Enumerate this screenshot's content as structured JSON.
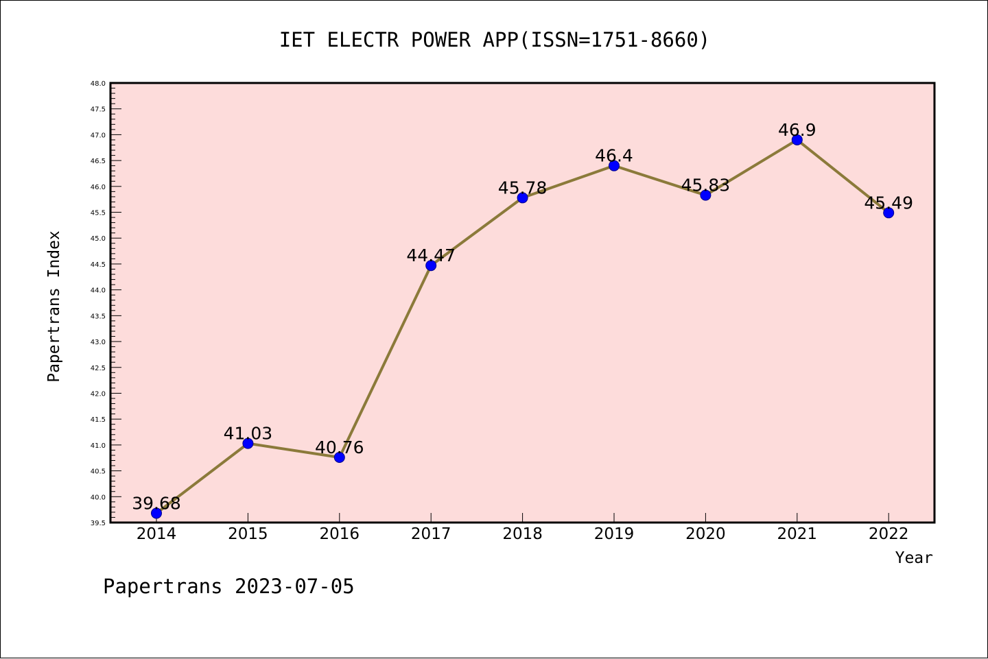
{
  "chart_data": {
    "type": "line",
    "title": "IET ELECTR POWER APP(ISSN=1751-8660)",
    "xlabel": "Year",
    "ylabel": "Papertrans Index",
    "categories": [
      "2014",
      "2015",
      "2016",
      "2017",
      "2018",
      "2019",
      "2020",
      "2021",
      "2022"
    ],
    "values": [
      39.68,
      41.03,
      40.76,
      44.47,
      45.78,
      46.4,
      45.83,
      46.9,
      45.49
    ],
    "data_labels": [
      "39.68",
      "41.03",
      "40.76",
      "44.47",
      "45.78",
      "46.4",
      "45.83",
      "46.9",
      "45.49"
    ],
    "ylim": [
      39.5,
      48.0
    ],
    "yticks": [
      39.5,
      40.0,
      40.5,
      41.0,
      41.5,
      42.0,
      42.5,
      43.0,
      43.5,
      44.0,
      44.5,
      45.0,
      45.5,
      46.0,
      46.5,
      47.0,
      47.5,
      48.0
    ],
    "ytick_labels": [
      "39.5",
      "40.0",
      "40.5",
      "41.0",
      "41.5",
      "42.0",
      "42.5",
      "43.0",
      "43.5",
      "44.0",
      "44.5",
      "45.0",
      "45.5",
      "46.0",
      "46.5",
      "47.0",
      "47.5",
      "48.0"
    ],
    "grid": false,
    "legend": "none",
    "colors": {
      "plot_background": "#fddcdb",
      "line": "#8b7a3a",
      "marker": "#0000ff"
    }
  },
  "footer": "Papertrans 2023-07-05"
}
